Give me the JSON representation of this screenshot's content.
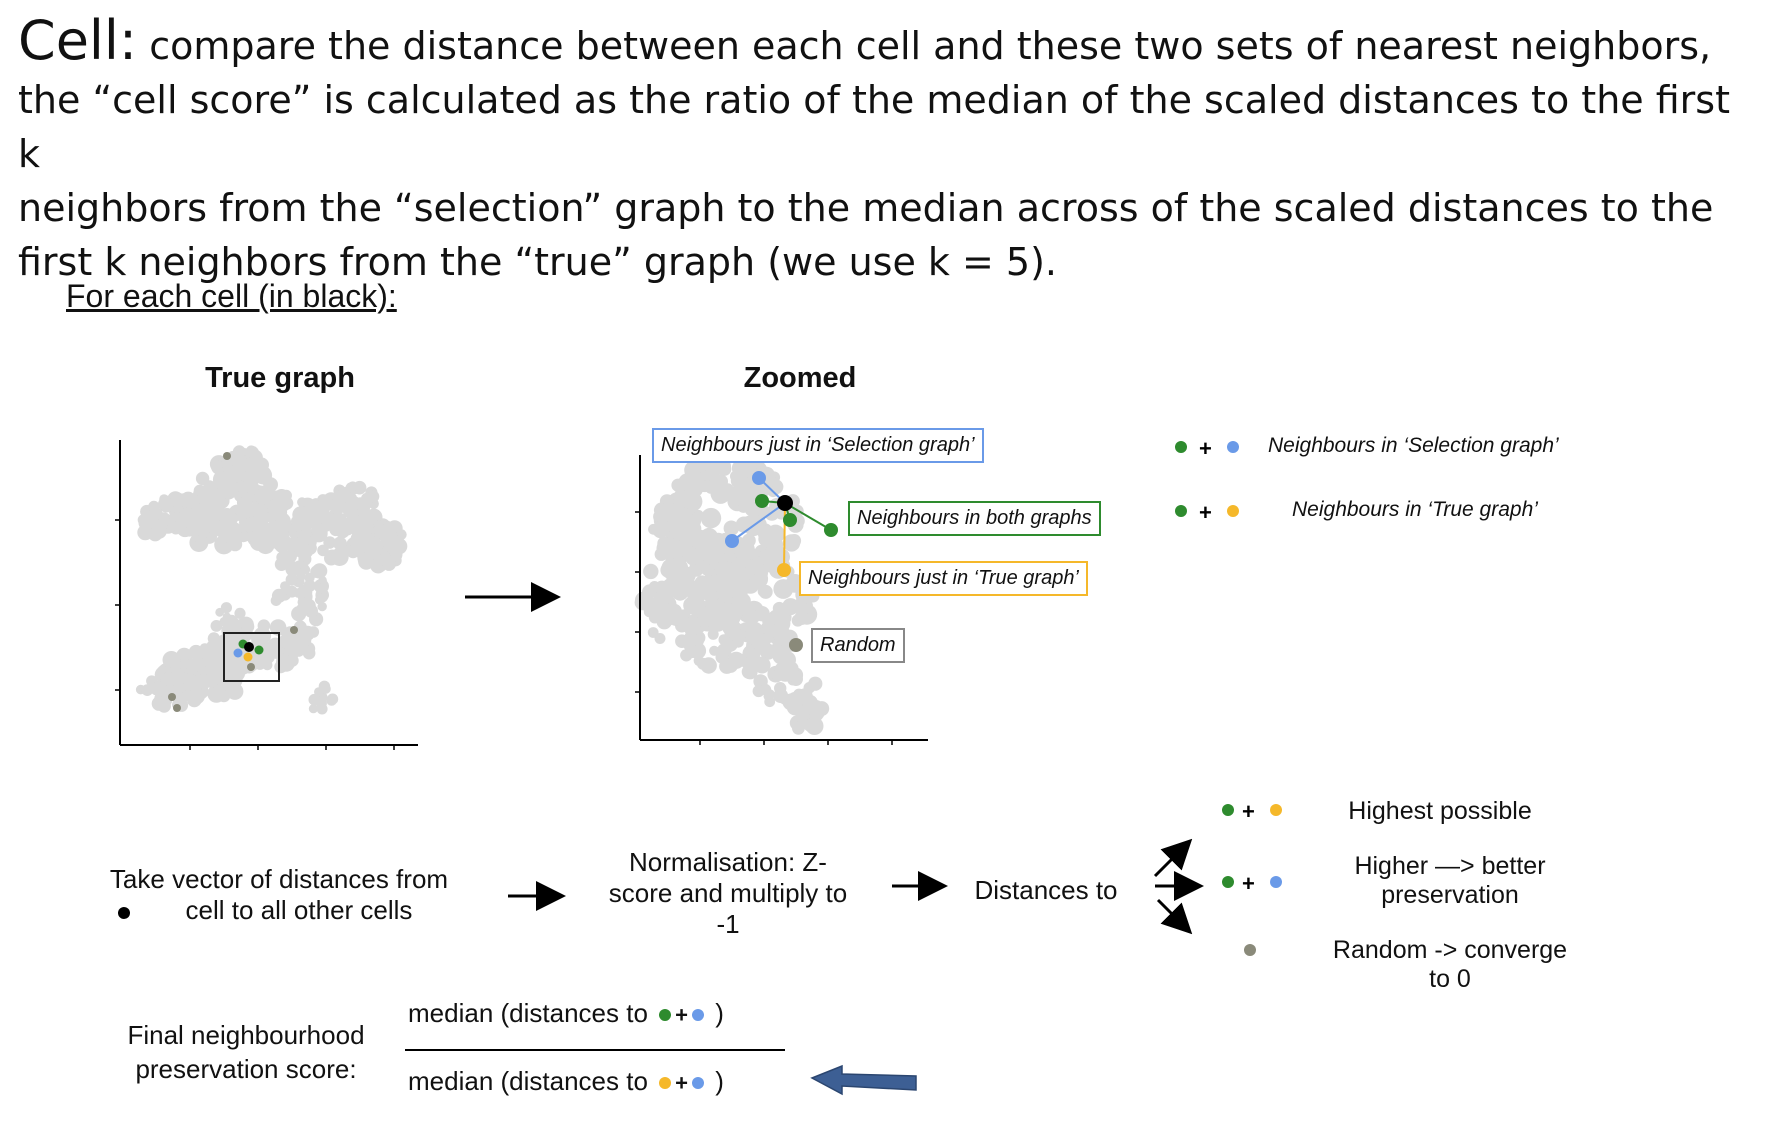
{
  "header": {
    "title_word": "Cell:",
    "title_line1": "compare the distance between each cell and these two sets of nearest neighbors,",
    "line2": "the “cell score” is calculated as the ratio of the median of the scaled distances to the first k",
    "line3": "neighbors from the “selection” graph to the median across of the scaled distances to the",
    "line4": "first k neighbors from the “true” graph (we use k = 5)."
  },
  "subtitle": "For each cell (in black):",
  "panels": {
    "true_graph_title": "True graph",
    "zoomed_title": "Zoomed"
  },
  "labels": {
    "just_selection": "Neighbours just in ‘Selection graph’",
    "both_graphs": "Neighbours in both graphs",
    "just_true": "Neighbours just in ‘True graph’",
    "random": "Random"
  },
  "legend": {
    "selection": "Neighbours in ‘Selection graph’",
    "true": "Neighbours in ‘True graph’"
  },
  "flow": {
    "step1_line1": "Take vector of distances from",
    "step1_line2": "cell to all other cells",
    "step2_line1": "Normalisation: Z-",
    "step2_line2": "score and multiply to",
    "step2_line3": "-1",
    "step3": "Distances to"
  },
  "outcomes": {
    "o1": "Highest possible",
    "o2_line1": "Higher —> better",
    "o2_line2": "preservation",
    "o3_line1": "Random -> converge",
    "o3_line2": "to 0"
  },
  "formula": {
    "label_line1": "Final neighbourhood",
    "label_line2": "preservation score:",
    "numerator_text": "median (distances to",
    "denominator_text": "median (distances to",
    "close_paren": ")"
  },
  "colors": {
    "green": "#2e8b2e",
    "blue": "#6a9ae8",
    "yellow": "#f5b82a",
    "random": "#8a8a7a",
    "black": "#000000",
    "cloud": "#d9d9d9",
    "arrow_blue": "#3d5f94"
  }
}
